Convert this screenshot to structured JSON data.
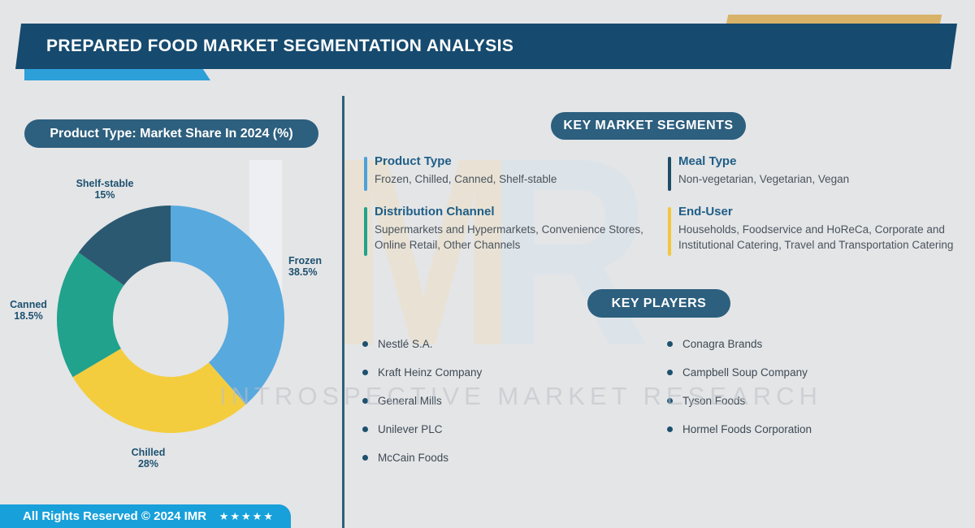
{
  "header": {
    "title": "PREPARED FOOD MARKET SEGMENTATION ANALYSIS"
  },
  "watermark": {
    "letters": [
      "I",
      "M",
      "R"
    ],
    "text": "INTROSPECTIVE MARKET RESEARCH"
  },
  "chart_data": {
    "type": "pie",
    "subtype": "donut",
    "title": "Product Type: Market Share In 2024 (%)",
    "categories": [
      "Frozen",
      "Chilled",
      "Canned",
      "Shelf-stable"
    ],
    "values": [
      38.5,
      28,
      18.5,
      15
    ],
    "start_angle_deg": 0,
    "direction": "clockwise",
    "legend_position": "none",
    "slices": [
      {
        "label": "Frozen",
        "pct": "38.5%",
        "color": "#58a9de"
      },
      {
        "label": "Chilled",
        "pct": "28%",
        "color": "#f4cd3e"
      },
      {
        "label": "Canned",
        "pct": "18.5%",
        "color": "#21a28c"
      },
      {
        "label": "Shelf-stable",
        "pct": "15%",
        "color": "#2b5971"
      }
    ]
  },
  "key_segments": {
    "heading": "KEY MARKET SEGMENTS",
    "items": [
      {
        "title": "Product Type",
        "accent": "#4da1da",
        "desc": [
          "Frozen, Chilled, Canned, Shelf-stable"
        ]
      },
      {
        "title": "Meal Type",
        "accent": "#1d4d68",
        "desc": [
          "Non-vegetarian, Vegetarian, Vegan"
        ]
      },
      {
        "title": "Distribution Channel",
        "accent": "#21a28c",
        "desc": [
          "Supermarkets and Hypermarkets, Convenience Stores,",
          "Online Retail, Other Channels"
        ]
      },
      {
        "title": "End-User",
        "accent": "#f3c73c",
        "desc": [
          "Households, Foodservice and HoReCa, Corporate and",
          "Institutional Catering, Travel and Transportation Catering"
        ]
      }
    ]
  },
  "key_players": {
    "heading": "KEY PLAYERS",
    "left": [
      "Nestlé S.A.",
      "Kraft Heinz Company",
      "General Mills",
      "Unilever PLC",
      "McCain Foods"
    ],
    "right": [
      "Conagra Brands",
      "Campbell Soup Company",
      "Tyson Foods",
      "Hormel Foods Corporation"
    ]
  },
  "footer": {
    "text": "All Rights Reserved © 2024 IMR",
    "stars": "★★★★★"
  },
  "colors": {
    "background": "#e4e5e7",
    "banner_bg": "#164a6e",
    "pill_bg": "#2d5f7e",
    "accent_blue": "#2d9fd9",
    "accent_gold": "#d9b269",
    "footer_bg": "#18a0da",
    "divider": "#2e5f78",
    "label_text": "#1d516f",
    "segment_title_text": "#1e5e87",
    "body_text": "#4a545d"
  }
}
